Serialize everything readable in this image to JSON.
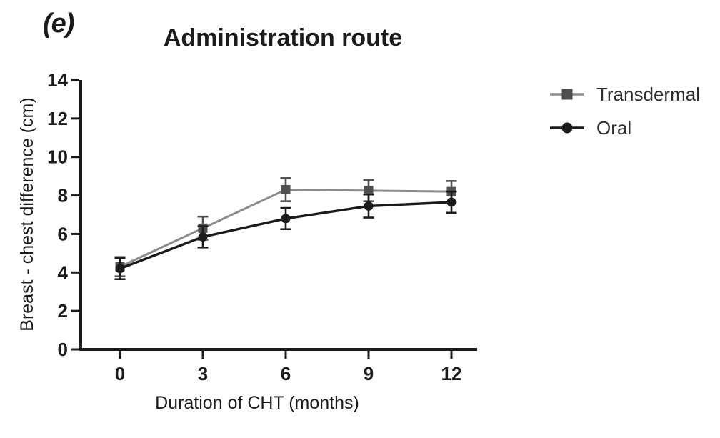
{
  "figure": {
    "label": "(e)",
    "title": "Administration route"
  },
  "colors": {
    "background": "#ffffff",
    "axis": "#1b1b1b",
    "transdermal_line": "#8c8c8c",
    "transdermal_marker": "#4f4f4f",
    "oral_line": "#1b1b1b",
    "oral_marker": "#1b1b1b"
  },
  "legend": [
    {
      "label": "Transdermal",
      "marker": "square",
      "line_color": "#8c8c8c",
      "marker_color": "#4f4f4f"
    },
    {
      "label": "Oral",
      "marker": "circle",
      "line_color": "#1b1b1b",
      "marker_color": "#1b1b1b"
    }
  ],
  "chart_data": {
    "type": "line",
    "title": "Administration route",
    "xlabel": "Duration of CHT (months)",
    "ylabel": "Breast - chest difference (cm)",
    "x": [
      0,
      3,
      6,
      9,
      12
    ],
    "xticks": [
      0,
      3,
      6,
      9,
      12
    ],
    "yticks": [
      0,
      2,
      4,
      6,
      8,
      10,
      12,
      14
    ],
    "ylim": [
      0,
      14
    ],
    "grid": false,
    "error_bars": true,
    "legend_position": "right",
    "series": [
      {
        "name": "Transdermal",
        "marker": "square",
        "line_color": "#8c8c8c",
        "marker_color": "#4f4f4f",
        "line_width": 3,
        "values": [
          4.3,
          6.3,
          8.3,
          8.25,
          8.2
        ],
        "errors": [
          0.5,
          0.6,
          0.6,
          0.55,
          0.55
        ]
      },
      {
        "name": "Oral",
        "marker": "circle",
        "line_color": "#1b1b1b",
        "marker_color": "#1b1b1b",
        "line_width": 3.4,
        "values": [
          4.2,
          5.85,
          6.8,
          7.45,
          7.65
        ],
        "errors": [
          0.55,
          0.55,
          0.55,
          0.6,
          0.55
        ]
      }
    ]
  }
}
